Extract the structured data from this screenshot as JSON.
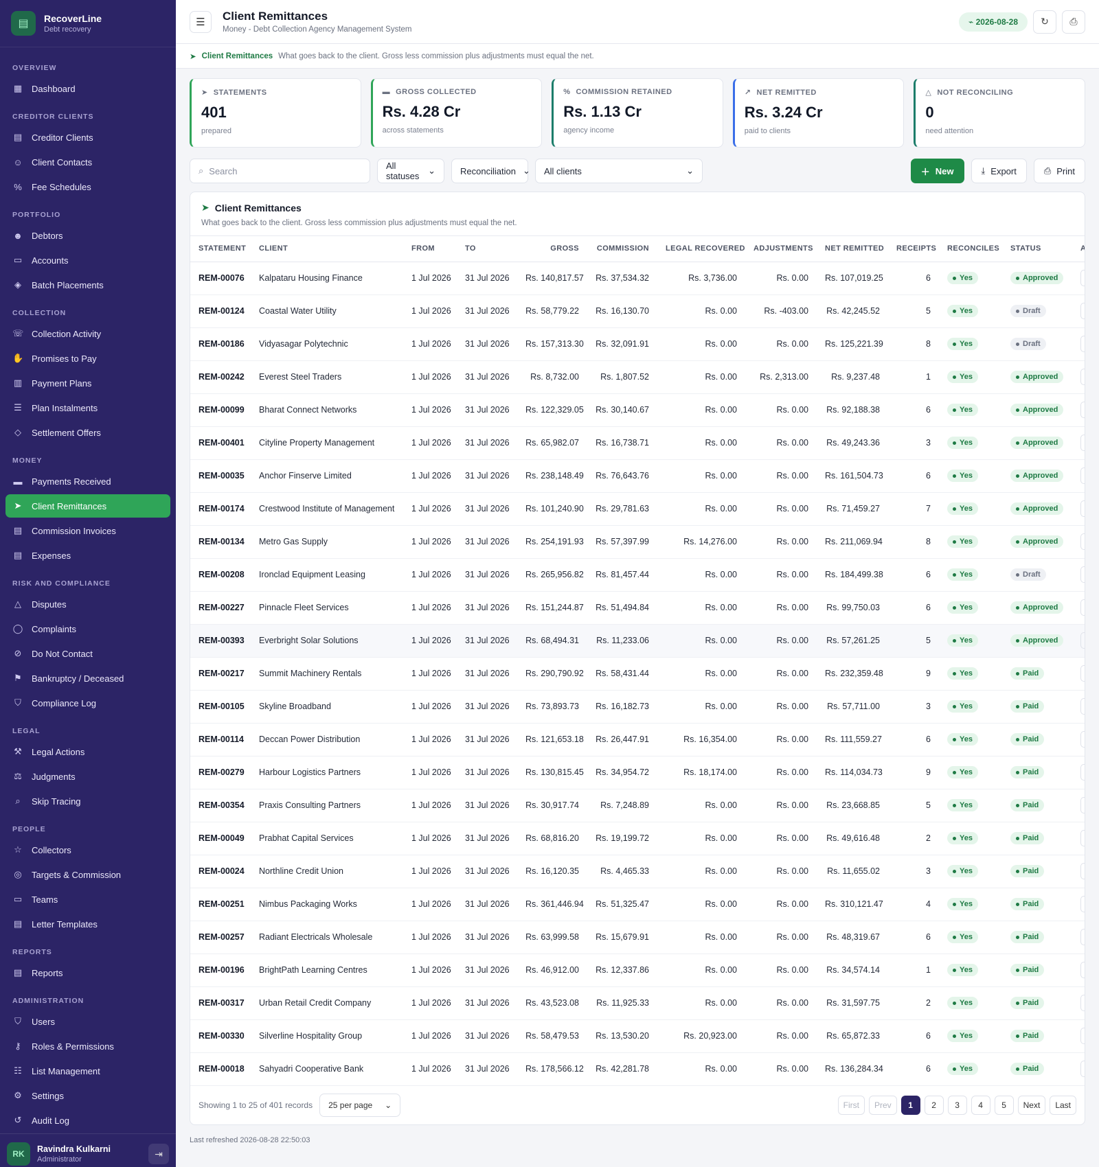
{
  "brand": {
    "name": "RecoverLine",
    "sub": "Debt recovery"
  },
  "nav": [
    {
      "section": "Overview",
      "items": [
        {
          "label": "Dashboard",
          "icon": "▦",
          "name": "dashboard"
        }
      ]
    },
    {
      "section": "Creditor Clients",
      "items": [
        {
          "label": "Creditor Clients",
          "icon": "▤",
          "name": "creditor-clients"
        },
        {
          "label": "Client Contacts",
          "icon": "☺",
          "name": "client-contacts"
        },
        {
          "label": "Fee Schedules",
          "icon": "%",
          "name": "fee-schedules"
        }
      ]
    },
    {
      "section": "Portfolio",
      "items": [
        {
          "label": "Debtors",
          "icon": "☻",
          "name": "debtors"
        },
        {
          "label": "Accounts",
          "icon": "▭",
          "name": "accounts"
        },
        {
          "label": "Batch Placements",
          "icon": "◈",
          "name": "batch-placements"
        }
      ]
    },
    {
      "section": "Collection",
      "items": [
        {
          "label": "Collection Activity",
          "icon": "☏",
          "name": "collection-activity"
        },
        {
          "label": "Promises to Pay",
          "icon": "✋",
          "name": "promises-to-pay"
        },
        {
          "label": "Payment Plans",
          "icon": "▥",
          "name": "payment-plans"
        },
        {
          "label": "Plan Instalments",
          "icon": "☰",
          "name": "plan-instalments"
        },
        {
          "label": "Settlement Offers",
          "icon": "◇",
          "name": "settlement-offers"
        }
      ]
    },
    {
      "section": "Money",
      "items": [
        {
          "label": "Payments Received",
          "icon": "▬",
          "name": "payments-received"
        },
        {
          "label": "Client Remittances",
          "icon": "➤",
          "name": "client-remittances",
          "active": true
        },
        {
          "label": "Commission Invoices",
          "icon": "▤",
          "name": "commission-invoices"
        },
        {
          "label": "Expenses",
          "icon": "▤",
          "name": "expenses"
        }
      ]
    },
    {
      "section": "Risk and Compliance",
      "items": [
        {
          "label": "Disputes",
          "icon": "△",
          "name": "disputes"
        },
        {
          "label": "Complaints",
          "icon": "◯",
          "name": "complaints"
        },
        {
          "label": "Do Not Contact",
          "icon": "⊘",
          "name": "do-not-contact"
        },
        {
          "label": "Bankruptcy / Deceased",
          "icon": "⚑",
          "name": "bankruptcy-deceased"
        },
        {
          "label": "Compliance Log",
          "icon": "⛉",
          "name": "compliance-log"
        }
      ]
    },
    {
      "section": "Legal",
      "items": [
        {
          "label": "Legal Actions",
          "icon": "⚒",
          "name": "legal-actions"
        },
        {
          "label": "Judgments",
          "icon": "⚖",
          "name": "judgments"
        },
        {
          "label": "Skip Tracing",
          "icon": "⌕",
          "name": "skip-tracing"
        }
      ]
    },
    {
      "section": "People",
      "items": [
        {
          "label": "Collectors",
          "icon": "☆",
          "name": "collectors"
        },
        {
          "label": "Targets & Commission",
          "icon": "◎",
          "name": "targets-commission"
        },
        {
          "label": "Teams",
          "icon": "▭",
          "name": "teams"
        },
        {
          "label": "Letter Templates",
          "icon": "▤",
          "name": "letter-templates"
        }
      ]
    },
    {
      "section": "Reports",
      "items": [
        {
          "label": "Reports",
          "icon": "▤",
          "name": "reports"
        }
      ]
    },
    {
      "section": "Administration",
      "items": [
        {
          "label": "Users",
          "icon": "⛉",
          "name": "users"
        },
        {
          "label": "Roles & Permissions",
          "icon": "⚷",
          "name": "roles-permissions"
        },
        {
          "label": "List Management",
          "icon": "☷",
          "name": "list-management"
        },
        {
          "label": "Settings",
          "icon": "⚙",
          "name": "settings"
        },
        {
          "label": "Audit Log",
          "icon": "↺",
          "name": "audit-log"
        }
      ]
    }
  ],
  "user": {
    "initials": "RK",
    "name": "Ravindra Kulkarni",
    "role": "Administrator"
  },
  "header": {
    "title": "Client Remittances",
    "subtitle": "Money - Debt Collection Agency Management System",
    "date": "2026-08-28"
  },
  "info": {
    "highlight": "Client Remittances",
    "text": "What goes back to the client. Gross less commission plus adjustments must equal the net."
  },
  "stats": [
    {
      "label": "Statements",
      "value": "401",
      "note": "prepared",
      "icon": "➤"
    },
    {
      "label": "Gross Collected",
      "value": "Rs. 4.28 Cr",
      "note": "across statements",
      "icon": "▬"
    },
    {
      "label": "Commission Retained",
      "value": "Rs. 1.13 Cr",
      "note": "agency income",
      "icon": "%"
    },
    {
      "label": "Net Remitted",
      "value": "Rs. 3.24 Cr",
      "note": "paid to clients",
      "icon": "↗"
    },
    {
      "label": "Not Reconciling",
      "value": "0",
      "note": "need attention",
      "icon": "△"
    }
  ],
  "filters": {
    "search_placeholder": "Search",
    "status": "All statuses",
    "reconciliation": "Reconciliation",
    "clients": "All clients",
    "new": "New",
    "export": "Export",
    "print": "Print"
  },
  "card": {
    "title": "Client Remittances",
    "subtitle": "What goes back to the client. Gross less commission plus adjustments must equal the net."
  },
  "columns": [
    "Statement",
    "Client",
    "From",
    "To",
    "Gross",
    "Commission",
    "Legal Recovered",
    "Adjustments",
    "Net Remitted",
    "Receipts",
    "Reconciles",
    "Status",
    "A"
  ],
  "rows": [
    [
      "REM-00076",
      "Kalpataru Housing Finance",
      "1 Jul 2026",
      "31 Jul 2026",
      "Rs. 140,817.57",
      "Rs. 37,534.32",
      "Rs. 3,736.00",
      "Rs. 0.00",
      "Rs. 107,019.25",
      "6",
      "Yes",
      "Approved"
    ],
    [
      "REM-00124",
      "Coastal Water Utility",
      "1 Jul 2026",
      "31 Jul 2026",
      "Rs. 58,779.22",
      "Rs. 16,130.70",
      "Rs. 0.00",
      "Rs. -403.00",
      "Rs. 42,245.52",
      "5",
      "Yes",
      "Draft"
    ],
    [
      "REM-00186",
      "Vidyasagar Polytechnic",
      "1 Jul 2026",
      "31 Jul 2026",
      "Rs. 157,313.30",
      "Rs. 32,091.91",
      "Rs. 0.00",
      "Rs. 0.00",
      "Rs. 125,221.39",
      "8",
      "Yes",
      "Draft"
    ],
    [
      "REM-00242",
      "Everest Steel Traders",
      "1 Jul 2026",
      "31 Jul 2026",
      "Rs. 8,732.00",
      "Rs. 1,807.52",
      "Rs. 0.00",
      "Rs. 2,313.00",
      "Rs. 9,237.48",
      "1",
      "Yes",
      "Approved"
    ],
    [
      "REM-00099",
      "Bharat Connect Networks",
      "1 Jul 2026",
      "31 Jul 2026",
      "Rs. 122,329.05",
      "Rs. 30,140.67",
      "Rs. 0.00",
      "Rs. 0.00",
      "Rs. 92,188.38",
      "6",
      "Yes",
      "Approved"
    ],
    [
      "REM-00401",
      "Cityline Property Management",
      "1 Jul 2026",
      "31 Jul 2026",
      "Rs. 65,982.07",
      "Rs. 16,738.71",
      "Rs. 0.00",
      "Rs. 0.00",
      "Rs. 49,243.36",
      "3",
      "Yes",
      "Approved"
    ],
    [
      "REM-00035",
      "Anchor Finserve Limited",
      "1 Jul 2026",
      "31 Jul 2026",
      "Rs. 238,148.49",
      "Rs. 76,643.76",
      "Rs. 0.00",
      "Rs. 0.00",
      "Rs. 161,504.73",
      "6",
      "Yes",
      "Approved"
    ],
    [
      "REM-00174",
      "Crestwood Institute of Management",
      "1 Jul 2026",
      "31 Jul 2026",
      "Rs. 101,240.90",
      "Rs. 29,781.63",
      "Rs. 0.00",
      "Rs. 0.00",
      "Rs. 71,459.27",
      "7",
      "Yes",
      "Approved"
    ],
    [
      "REM-00134",
      "Metro Gas Supply",
      "1 Jul 2026",
      "31 Jul 2026",
      "Rs. 254,191.93",
      "Rs. 57,397.99",
      "Rs. 14,276.00",
      "Rs. 0.00",
      "Rs. 211,069.94",
      "8",
      "Yes",
      "Approved"
    ],
    [
      "REM-00208",
      "Ironclad Equipment Leasing",
      "1 Jul 2026",
      "31 Jul 2026",
      "Rs. 265,956.82",
      "Rs. 81,457.44",
      "Rs. 0.00",
      "Rs. 0.00",
      "Rs. 184,499.38",
      "6",
      "Yes",
      "Draft"
    ],
    [
      "REM-00227",
      "Pinnacle Fleet Services",
      "1 Jul 2026",
      "31 Jul 2026",
      "Rs. 151,244.87",
      "Rs. 51,494.84",
      "Rs. 0.00",
      "Rs. 0.00",
      "Rs. 99,750.03",
      "6",
      "Yes",
      "Approved"
    ],
    [
      "REM-00393",
      "Everbright Solar Solutions",
      "1 Jul 2026",
      "31 Jul 2026",
      "Rs. 68,494.31",
      "Rs. 11,233.06",
      "Rs. 0.00",
      "Rs. 0.00",
      "Rs. 57,261.25",
      "5",
      "Yes",
      "Approved"
    ],
    [
      "REM-00217",
      "Summit Machinery Rentals",
      "1 Jul 2026",
      "31 Jul 2026",
      "Rs. 290,790.92",
      "Rs. 58,431.44",
      "Rs. 0.00",
      "Rs. 0.00",
      "Rs. 232,359.48",
      "9",
      "Yes",
      "Paid"
    ],
    [
      "REM-00105",
      "Skyline Broadband",
      "1 Jul 2026",
      "31 Jul 2026",
      "Rs. 73,893.73",
      "Rs. 16,182.73",
      "Rs. 0.00",
      "Rs. 0.00",
      "Rs. 57,711.00",
      "3",
      "Yes",
      "Paid"
    ],
    [
      "REM-00114",
      "Deccan Power Distribution",
      "1 Jul 2026",
      "31 Jul 2026",
      "Rs. 121,653.18",
      "Rs. 26,447.91",
      "Rs. 16,354.00",
      "Rs. 0.00",
      "Rs. 111,559.27",
      "6",
      "Yes",
      "Paid"
    ],
    [
      "REM-00279",
      "Harbour Logistics Partners",
      "1 Jul 2026",
      "31 Jul 2026",
      "Rs. 130,815.45",
      "Rs. 34,954.72",
      "Rs. 18,174.00",
      "Rs. 0.00",
      "Rs. 114,034.73",
      "9",
      "Yes",
      "Paid"
    ],
    [
      "REM-00354",
      "Praxis Consulting Partners",
      "1 Jul 2026",
      "31 Jul 2026",
      "Rs. 30,917.74",
      "Rs. 7,248.89",
      "Rs. 0.00",
      "Rs. 0.00",
      "Rs. 23,668.85",
      "5",
      "Yes",
      "Paid"
    ],
    [
      "REM-00049",
      "Prabhat Capital Services",
      "1 Jul 2026",
      "31 Jul 2026",
      "Rs. 68,816.20",
      "Rs. 19,199.72",
      "Rs. 0.00",
      "Rs. 0.00",
      "Rs. 49,616.48",
      "2",
      "Yes",
      "Paid"
    ],
    [
      "REM-00024",
      "Northline Credit Union",
      "1 Jul 2026",
      "31 Jul 2026",
      "Rs. 16,120.35",
      "Rs. 4,465.33",
      "Rs. 0.00",
      "Rs. 0.00",
      "Rs. 11,655.02",
      "3",
      "Yes",
      "Paid"
    ],
    [
      "REM-00251",
      "Nimbus Packaging Works",
      "1 Jul 2026",
      "31 Jul 2026",
      "Rs. 361,446.94",
      "Rs. 51,325.47",
      "Rs. 0.00",
      "Rs. 0.00",
      "Rs. 310,121.47",
      "4",
      "Yes",
      "Paid"
    ],
    [
      "REM-00257",
      "Radiant Electricals Wholesale",
      "1 Jul 2026",
      "31 Jul 2026",
      "Rs. 63,999.58",
      "Rs. 15,679.91",
      "Rs. 0.00",
      "Rs. 0.00",
      "Rs. 48,319.67",
      "6",
      "Yes",
      "Paid"
    ],
    [
      "REM-00196",
      "BrightPath Learning Centres",
      "1 Jul 2026",
      "31 Jul 2026",
      "Rs. 46,912.00",
      "Rs. 12,337.86",
      "Rs. 0.00",
      "Rs. 0.00",
      "Rs. 34,574.14",
      "1",
      "Yes",
      "Paid"
    ],
    [
      "REM-00317",
      "Urban Retail Credit Company",
      "1 Jul 2026",
      "31 Jul 2026",
      "Rs. 43,523.08",
      "Rs. 11,925.33",
      "Rs. 0.00",
      "Rs. 0.00",
      "Rs. 31,597.75",
      "2",
      "Yes",
      "Paid"
    ],
    [
      "REM-00330",
      "Silverline Hospitality Group",
      "1 Jul 2026",
      "31 Jul 2026",
      "Rs. 58,479.53",
      "Rs. 13,530.20",
      "Rs. 20,923.00",
      "Rs. 0.00",
      "Rs. 65,872.33",
      "6",
      "Yes",
      "Paid"
    ],
    [
      "REM-00018",
      "Sahyadri Cooperative Bank",
      "1 Jul 2026",
      "31 Jul 2026",
      "Rs. 178,566.12",
      "Rs. 42,281.78",
      "Rs. 0.00",
      "Rs. 0.00",
      "Rs. 136,284.34",
      "6",
      "Yes",
      "Paid"
    ]
  ],
  "pager": {
    "info": "Showing 1 to 25 of 401 records",
    "per_page": "25 per page",
    "first": "First",
    "prev": "Prev",
    "pages": [
      "1",
      "2",
      "3",
      "4",
      "5"
    ],
    "next": "Next",
    "last": "Last"
  },
  "footer": "Last refreshed 2026-08-28 22:50:03"
}
